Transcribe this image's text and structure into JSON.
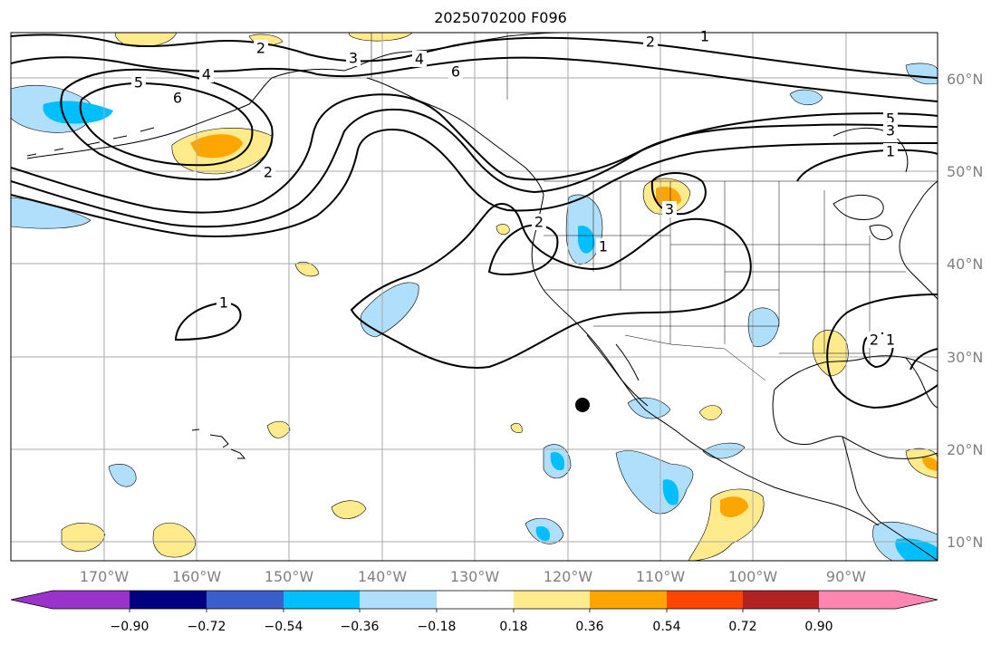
{
  "title": "2025070200 F096",
  "latitude_labels": [
    "60°N",
    "50°N",
    "40°N",
    "30°N",
    "20°N",
    "10°N"
  ],
  "longitude_labels": [
    "170°W",
    "160°W",
    "150°W",
    "140°W",
    "130°W",
    "120°W",
    "110°W",
    "100°W",
    "90°W"
  ],
  "colorbar": {
    "tick_labels": [
      "−0.90",
      "−0.72",
      "−0.54",
      "−0.36",
      "−0.18",
      "0.18",
      "0.36",
      "0.54",
      "0.72",
      "0.90"
    ],
    "colors": [
      "#9933cc",
      "#000080",
      "#3a5fcd",
      "#00bfff",
      "#afdffa",
      "#ffffff",
      "#ffea8c",
      "#ffa500",
      "#ff4500",
      "#b22222",
      "#ff86b0"
    ],
    "extend": "both"
  },
  "contour_labels": [
    "1",
    "2",
    "3",
    "4",
    "5",
    "6"
  ],
  "marker": {
    "type": "filled-circle",
    "color": "#000000"
  },
  "legend_colors": {
    "land_outline": "#000000",
    "grid": "#aaaaaa",
    "contour": "#000000"
  }
}
